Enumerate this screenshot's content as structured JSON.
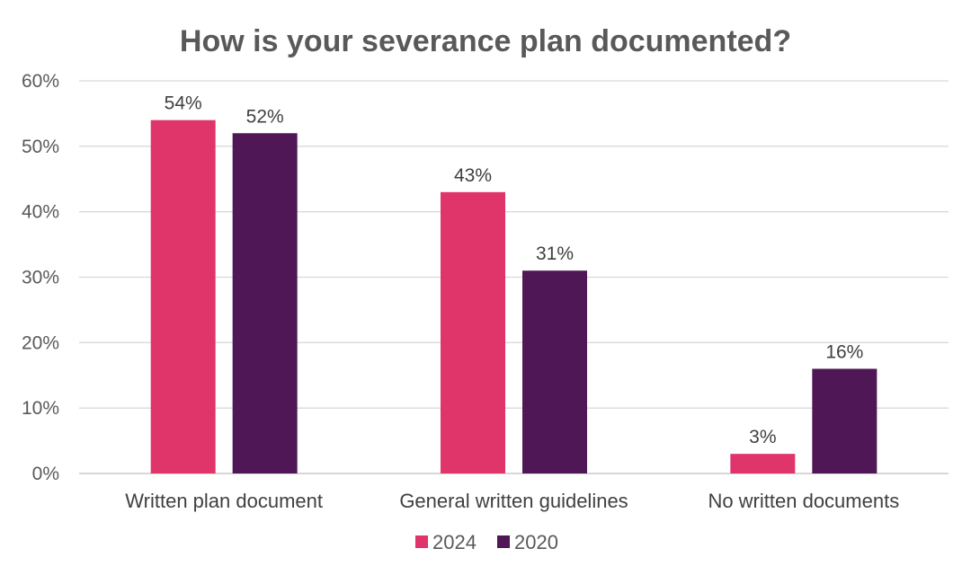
{
  "chart_data": {
    "type": "bar",
    "title": "How is your severance plan documented?",
    "categories": [
      "Written plan document",
      "General written guidelines",
      "No written documents"
    ],
    "series": [
      {
        "name": "2024",
        "values": [
          54,
          43,
          3
        ],
        "color": "#E0356A"
      },
      {
        "name": "2020",
        "values": [
          52,
          31,
          16
        ],
        "color": "#4F1756"
      }
    ],
    "yticks": [
      "0%",
      "10%",
      "20%",
      "30%",
      "40%",
      "50%",
      "60%"
    ],
    "ylim": [
      0,
      60
    ],
    "value_suffix": "%",
    "grid": true,
    "legend": "bottom",
    "xlabel": "",
    "ylabel": ""
  }
}
